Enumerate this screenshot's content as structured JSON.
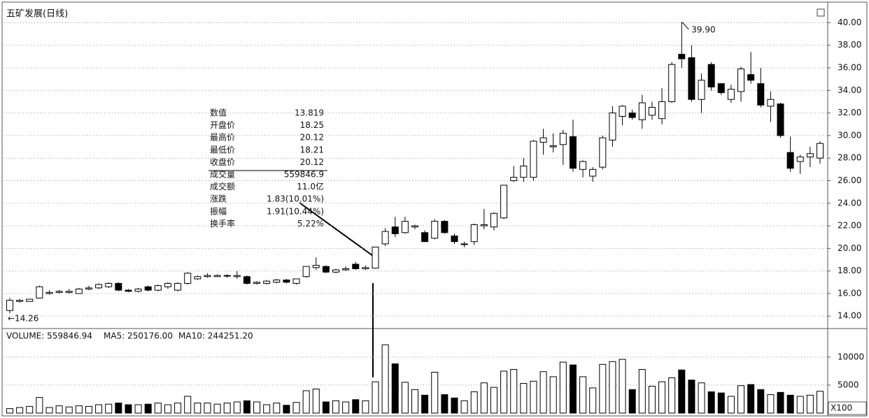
{
  "chart_data": [
    {
      "type": "candlestick",
      "title": "五矿发展(日线)",
      "open": [
        14.5,
        15.3,
        15.3,
        15.6,
        16.0,
        16.1,
        16.1,
        16.0,
        16.4,
        16.5,
        16.6,
        16.9,
        16.3,
        16.2,
        16.6,
        16.3,
        16.6,
        16.3,
        16.9,
        17.3,
        17.5,
        17.5,
        17.6,
        17.5,
        17.5,
        16.9,
        16.9,
        17.0,
        17.2,
        16.9,
        17.5,
        18.3,
        18.4,
        17.9,
        18.1,
        18.6,
        18.2,
        18.25,
        20.4,
        21.9,
        21.4,
        21.9,
        21.4,
        20.9,
        22.4,
        21.1,
        20.4,
        20.6,
        22.0,
        21.9,
        22.7,
        26.0,
        26.3,
        26.3,
        29.4,
        29.0,
        29.2,
        29.9,
        27.0,
        26.4,
        27.2,
        29.6,
        31.7,
        32.0,
        31.4,
        31.8,
        31.5,
        33.0,
        37.2,
        36.9,
        33.2,
        36.3,
        34.6,
        33.2,
        33.9,
        35.4,
        34.6,
        32.6,
        32.8,
        28.5,
        27.7,
        28.1,
        28.0
      ],
      "high": [
        15.6,
        15.5,
        15.5,
        16.7,
        16.3,
        16.3,
        16.4,
        16.5,
        16.7,
        16.9,
        17.0,
        17.0,
        16.4,
        16.5,
        16.7,
        16.8,
        17.0,
        17.0,
        17.9,
        17.6,
        17.8,
        17.7,
        17.7,
        18.0,
        17.6,
        17.1,
        17.2,
        17.3,
        17.3,
        17.3,
        18.4,
        19.2,
        18.5,
        18.2,
        18.4,
        18.8,
        18.5,
        20.12,
        21.8,
        22.8,
        22.8,
        22.1,
        21.6,
        22.6,
        22.5,
        21.3,
        20.6,
        22.2,
        23.5,
        23.2,
        25.6,
        27.3,
        28.0,
        29.6,
        30.6,
        30.2,
        30.5,
        31.4,
        27.8,
        27.2,
        30.0,
        32.6,
        32.7,
        32.3,
        33.6,
        33.0,
        34.2,
        36.5,
        39.9,
        38.0,
        35.5,
        36.5,
        34.6,
        34.5,
        36.1,
        37.4,
        36.0,
        33.9,
        32.9,
        29.9,
        28.3,
        29.0,
        29.5
      ],
      "low": [
        14.26,
        15.2,
        15.3,
        15.6,
        15.9,
        16.0,
        16.0,
        16.0,
        16.3,
        16.4,
        16.5,
        16.2,
        16.1,
        16.1,
        16.2,
        16.2,
        16.4,
        16.2,
        16.8,
        17.2,
        17.4,
        17.5,
        17.4,
        17.3,
        16.8,
        16.8,
        16.8,
        16.9,
        16.9,
        16.8,
        17.4,
        18.1,
        17.8,
        17.8,
        18.0,
        18.1,
        18.1,
        18.21,
        20.2,
        21.0,
        21.3,
        21.7,
        20.6,
        20.8,
        21.3,
        20.4,
        20.1,
        20.3,
        21.7,
        21.6,
        22.6,
        25.9,
        25.9,
        26.0,
        28.3,
        28.5,
        27.4,
        26.8,
        26.3,
        25.9,
        27.0,
        29.0,
        30.9,
        31.4,
        30.6,
        31.4,
        31.0,
        32.9,
        36.0,
        33.0,
        32.0,
        34.0,
        33.6,
        32.9,
        33.0,
        34.6,
        32.5,
        31.2,
        29.8,
        26.8,
        26.6,
        27.2,
        27.5
      ],
      "close": [
        15.4,
        15.4,
        15.5,
        16.6,
        16.1,
        16.2,
        16.2,
        16.4,
        16.5,
        16.8,
        16.9,
        16.3,
        16.2,
        16.4,
        16.3,
        16.7,
        16.9,
        16.9,
        17.8,
        17.5,
        17.6,
        17.6,
        17.6,
        17.6,
        16.9,
        17.0,
        17.1,
        17.2,
        17.0,
        17.3,
        18.4,
        18.5,
        17.9,
        18.1,
        18.2,
        18.2,
        18.3,
        20.12,
        21.5,
        21.3,
        22.4,
        22.0,
        20.6,
        22.4,
        21.4,
        20.6,
        20.4,
        22.1,
        22.1,
        23.1,
        25.6,
        26.3,
        27.3,
        29.5,
        29.8,
        29.1,
        30.2,
        27.1,
        27.7,
        27.0,
        29.8,
        32.0,
        32.6,
        31.6,
        32.9,
        32.5,
        33.0,
        36.3,
        36.8,
        33.2,
        34.9,
        34.3,
        33.8,
        34.1,
        35.9,
        34.9,
        32.7,
        33.2,
        30.0,
        27.1,
        28.1,
        28.4,
        29.3
      ],
      "up_color": "#ffffff",
      "down_color": "#000000",
      "high_label": "39.90",
      "low_label": "←14.26",
      "ylim": [
        12.9,
        41.7
      ],
      "yticks": [
        {
          "value": 14,
          "label": "14.00"
        },
        {
          "value": 16,
          "label": "16.00"
        },
        {
          "value": 18,
          "label": "18.00"
        },
        {
          "value": 20,
          "label": "20.00"
        },
        {
          "value": 22,
          "label": "22.00"
        },
        {
          "value": 24,
          "label": "24.00"
        },
        {
          "value": 26,
          "label": "26.00"
        },
        {
          "value": 28,
          "label": "28.00"
        },
        {
          "value": 30,
          "label": "30.00"
        },
        {
          "value": 32,
          "label": "32.00"
        },
        {
          "value": 34,
          "label": "34.00"
        },
        {
          "value": 36,
          "label": "36.00"
        },
        {
          "value": 38,
          "label": "38.00"
        },
        {
          "value": 40,
          "label": "40.00"
        }
      ],
      "grid": true
    },
    {
      "type": "bar",
      "header": [
        "VOLUME: 559846.94",
        "MA5: 250176.00",
        "MA10: 244251.20"
      ],
      "unit_label": "X100",
      "values": [
        800,
        1000,
        1200,
        2800,
        1000,
        1300,
        1100,
        1300,
        1200,
        1500,
        1600,
        1800,
        1500,
        1500,
        1600,
        1800,
        1500,
        1800,
        3000,
        1800,
        1800,
        1600,
        1800,
        2000,
        2200,
        2000,
        1500,
        1800,
        1400,
        1900,
        4000,
        4300,
        2000,
        2200,
        2000,
        2400,
        2200,
        5598.4694,
        12200,
        8800,
        5500,
        4200,
        3200,
        7300,
        3300,
        2700,
        2200,
        3800,
        5400,
        4600,
        7500,
        7800,
        5300,
        5700,
        7400,
        6500,
        9100,
        8600,
        6500,
        4500,
        8700,
        9200,
        9600,
        4200,
        7800,
        4800,
        5600,
        6300,
        7700,
        5900,
        5400,
        3800,
        3600,
        3000,
        4900,
        5100,
        4200,
        3300,
        3700,
        3200,
        3000,
        3200,
        3900
      ],
      "ylim": [
        0,
        15100
      ],
      "yticks": [
        5000,
        10000
      ],
      "grid": true
    }
  ],
  "tooltip": {
    "rows": [
      [
        "数值",
        "13.819"
      ],
      [
        "开盘价",
        "18.25"
      ],
      [
        "最高价",
        "20.12"
      ],
      [
        "最低价",
        "18.21"
      ],
      [
        "收盘价",
        "20.12"
      ],
      [
        "成交量",
        "559846.9"
      ],
      [
        "成交额",
        "11.0亿"
      ],
      [
        "涨跌",
        "1.83(10.01%)"
      ],
      [
        "振幅",
        "1.91(10.44%)"
      ],
      [
        "换手率",
        "5.22%"
      ]
    ]
  }
}
